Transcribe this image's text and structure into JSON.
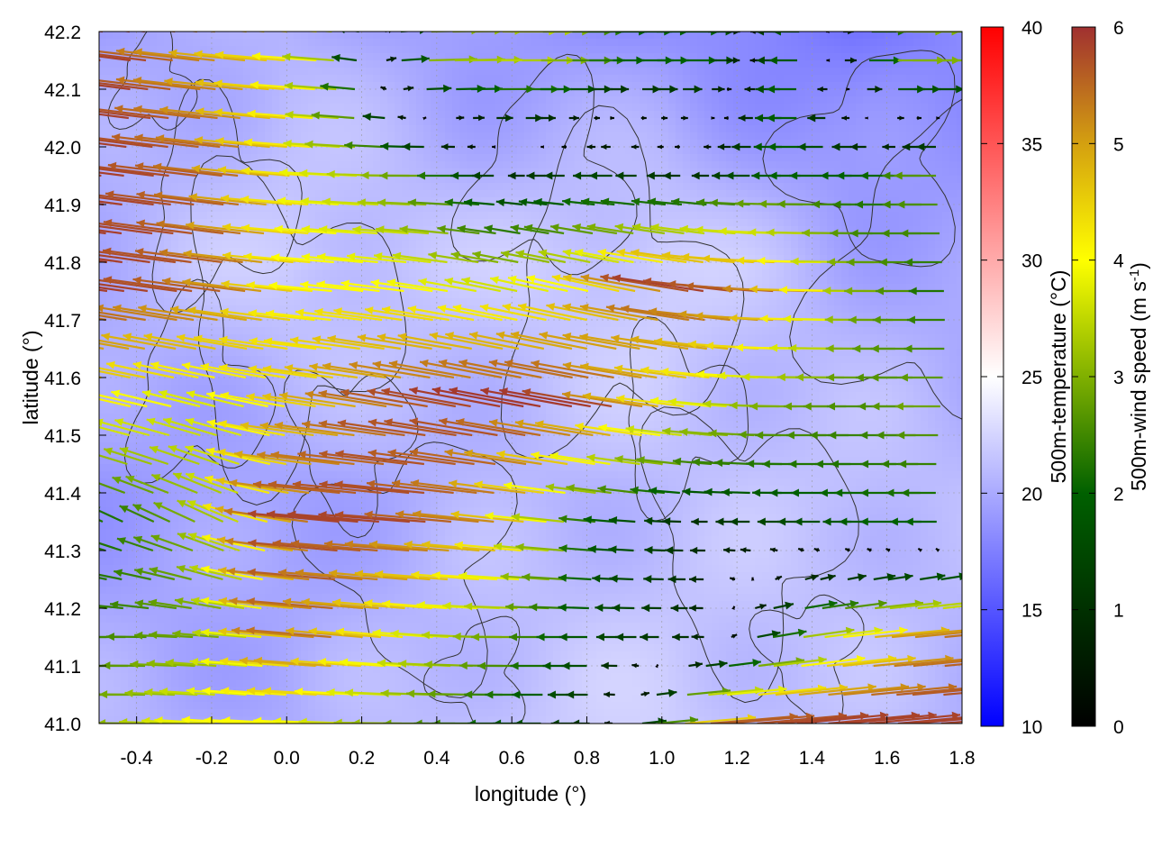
{
  "chart_data": {
    "type": "heatmap",
    "xlabel": "longitude (°)",
    "ylabel": "latitude (°)",
    "xlim": [
      -0.5,
      1.8
    ],
    "ylim": [
      41.0,
      42.2
    ],
    "xticks": [
      "-0.4",
      "-0.2",
      "0.0",
      "0.2",
      "0.4",
      "0.6",
      "0.8",
      "1.0",
      "1.2",
      "1.4",
      "1.6",
      "1.8"
    ],
    "yticks": [
      "41.0",
      "41.1",
      "41.2",
      "41.3",
      "41.4",
      "41.5",
      "41.6",
      "41.7",
      "41.8",
      "41.9",
      "42.0",
      "42.1",
      "42.2"
    ],
    "grid": true,
    "temperature": {
      "label": "500m-temperature (°C)",
      "range": [
        10,
        40
      ],
      "ticks": [
        "10",
        "15",
        "20",
        "25",
        "30",
        "35",
        "40"
      ],
      "colors": {
        "low": "#0000ff",
        "mid": "#ffffff",
        "high": "#ff0000"
      },
      "lon": [
        -0.5,
        0.0,
        0.5,
        1.0,
        1.5,
        1.8
      ],
      "lat": [
        42.2,
        41.8,
        41.4,
        41.0
      ],
      "values": [
        [
          19.5,
          20.5,
          19.0,
          18.5,
          17.0,
          18.0
        ],
        [
          20.5,
          22.0,
          21.5,
          22.5,
          20.0,
          19.5
        ],
        [
          19.0,
          19.5,
          20.5,
          21.0,
          21.5,
          21.0
        ],
        [
          20.5,
          20.0,
          21.5,
          22.0,
          21.0,
          20.5
        ]
      ]
    },
    "wind": {
      "label": "500m-wind speed (m s-1)",
      "range": [
        0,
        6
      ],
      "ticks": [
        "0",
        "1",
        "2",
        "3",
        "4",
        "5",
        "6"
      ],
      "colors": [
        "#000000",
        "#003000",
        "#006000",
        "#80b000",
        "#ffff00",
        "#d4a010",
        "#a03030"
      ],
      "lon": [
        -0.4,
        -0.15,
        0.1,
        0.35,
        0.6,
        0.85,
        1.1,
        1.35,
        1.6,
        1.8
      ],
      "lat": [
        42.15,
        41.95,
        41.75,
        41.55,
        41.35,
        41.15,
        41.0
      ],
      "u_v": [
        [
          [
            -5.8,
            0.8
          ],
          [
            -5,
            0.6
          ],
          [
            -4,
            0.3
          ],
          [
            3,
            0.1
          ],
          [
            3.5,
            0
          ],
          [
            2,
            0
          ],
          [
            2,
            0
          ],
          [
            -2,
            0
          ],
          [
            3,
            0
          ],
          [
            3,
            0
          ]
        ],
        [
          [
            -5.8,
            0.8
          ],
          [
            -5.5,
            0.7
          ],
          [
            -4,
            0.3
          ],
          [
            -3,
            0
          ],
          [
            -1,
            0
          ],
          [
            -1.5,
            0
          ],
          [
            -1,
            0
          ],
          [
            -2,
            0
          ],
          [
            -2,
            0
          ],
          [
            -3,
            0
          ]
        ],
        [
          [
            -5.8,
            0.9
          ],
          [
            -5.5,
            0.8
          ],
          [
            -4,
            0.4
          ],
          [
            -4,
            0.6
          ],
          [
            -3.5,
            0.8
          ],
          [
            -4,
            1.0
          ],
          [
            -5.8,
            1
          ],
          [
            -5.5,
            0.2
          ],
          [
            -3,
            0
          ],
          [
            -2,
            0
          ]
        ],
        [
          [
            -4,
            1
          ],
          [
            -3.5,
            1
          ],
          [
            -4.5,
            0.7
          ],
          [
            -5.5,
            1
          ],
          [
            -5.8,
            1.2
          ],
          [
            -5.8,
            1.1
          ],
          [
            -4,
            0.5
          ],
          [
            -3,
            0
          ],
          [
            -2.5,
            0
          ],
          [
            -3,
            0
          ]
        ],
        [
          [
            -2,
            1
          ],
          [
            -3,
            1.5
          ],
          [
            -5.8,
            0.6
          ],
          [
            -5.8,
            0.5
          ],
          [
            -5,
            0.6
          ],
          [
            -2,
            0.2
          ],
          [
            -1,
            0
          ],
          [
            -1.5,
            0
          ],
          [
            -2,
            0
          ],
          [
            -2,
            0
          ]
        ],
        [
          [
            -2.5,
            0
          ],
          [
            -3,
            0.3
          ],
          [
            -5.5,
            0.5
          ],
          [
            -4,
            0.4
          ],
          [
            -3,
            0
          ],
          [
            -1.5,
            0
          ],
          [
            -1,
            0
          ],
          [
            3,
            0.5
          ],
          [
            5,
            0.5
          ],
          [
            5.5,
            0.6
          ]
        ],
        [
          [
            -3,
            0
          ],
          [
            -4,
            0.3
          ],
          [
            -4,
            0.2
          ],
          [
            -3,
            0
          ],
          [
            -2,
            0
          ],
          [
            -1,
            0
          ],
          [
            5.5,
            0.5
          ],
          [
            5.8,
            0.6
          ],
          [
            5.8,
            0.6
          ],
          [
            5.8,
            0.5
          ]
        ]
      ]
    }
  }
}
